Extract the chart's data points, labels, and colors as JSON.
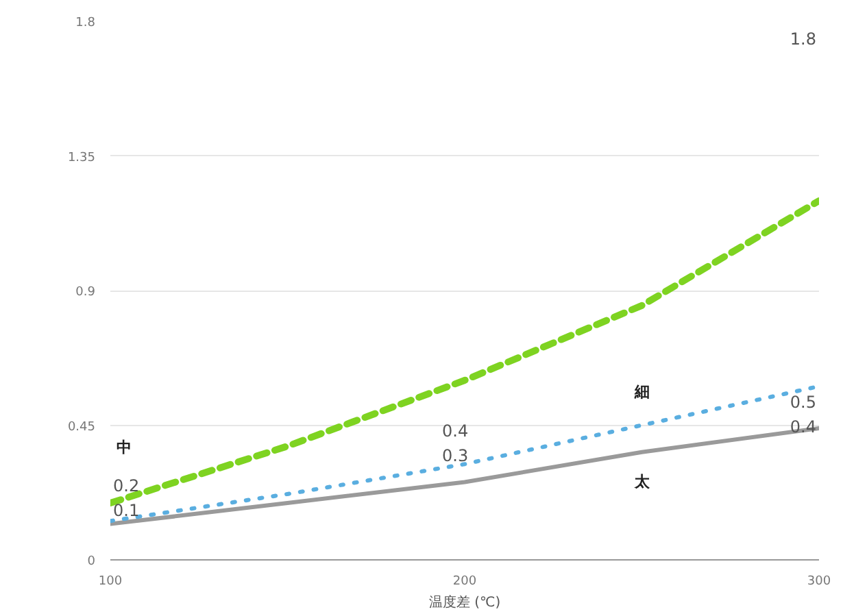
{
  "chart_data": {
    "type": "line",
    "xlabel": "温度差 (℃)",
    "x": [
      100,
      150,
      200,
      250,
      300
    ],
    "xlim": [
      100,
      300
    ],
    "xticks": [
      100,
      200,
      300
    ],
    "ylim": [
      0,
      1.8
    ],
    "yticks": [
      0,
      0.45,
      0.9,
      1.35,
      1.8
    ],
    "grid": "y",
    "legend": false,
    "marker": "none",
    "series": [
      {
        "name": "太",
        "color": "#9a9a9a",
        "line_style": "solid",
        "values": [
          0.12,
          0.19,
          0.26,
          0.36,
          0.44
        ]
      },
      {
        "name": "細",
        "color": "#5aaee0",
        "line_style": "dotted",
        "values": [
          0.13,
          0.22,
          0.32,
          0.45,
          0.58
        ]
      },
      {
        "name": "中",
        "color": "#7ed321",
        "line_style": "dashed",
        "values": [
          0.19,
          0.38,
          0.6,
          0.85,
          1.2
        ]
      }
    ],
    "annotations": [
      "0.2",
      "0.1",
      "0.4",
      "0.3",
      "1.8",
      "0.5",
      "0.4"
    ]
  }
}
